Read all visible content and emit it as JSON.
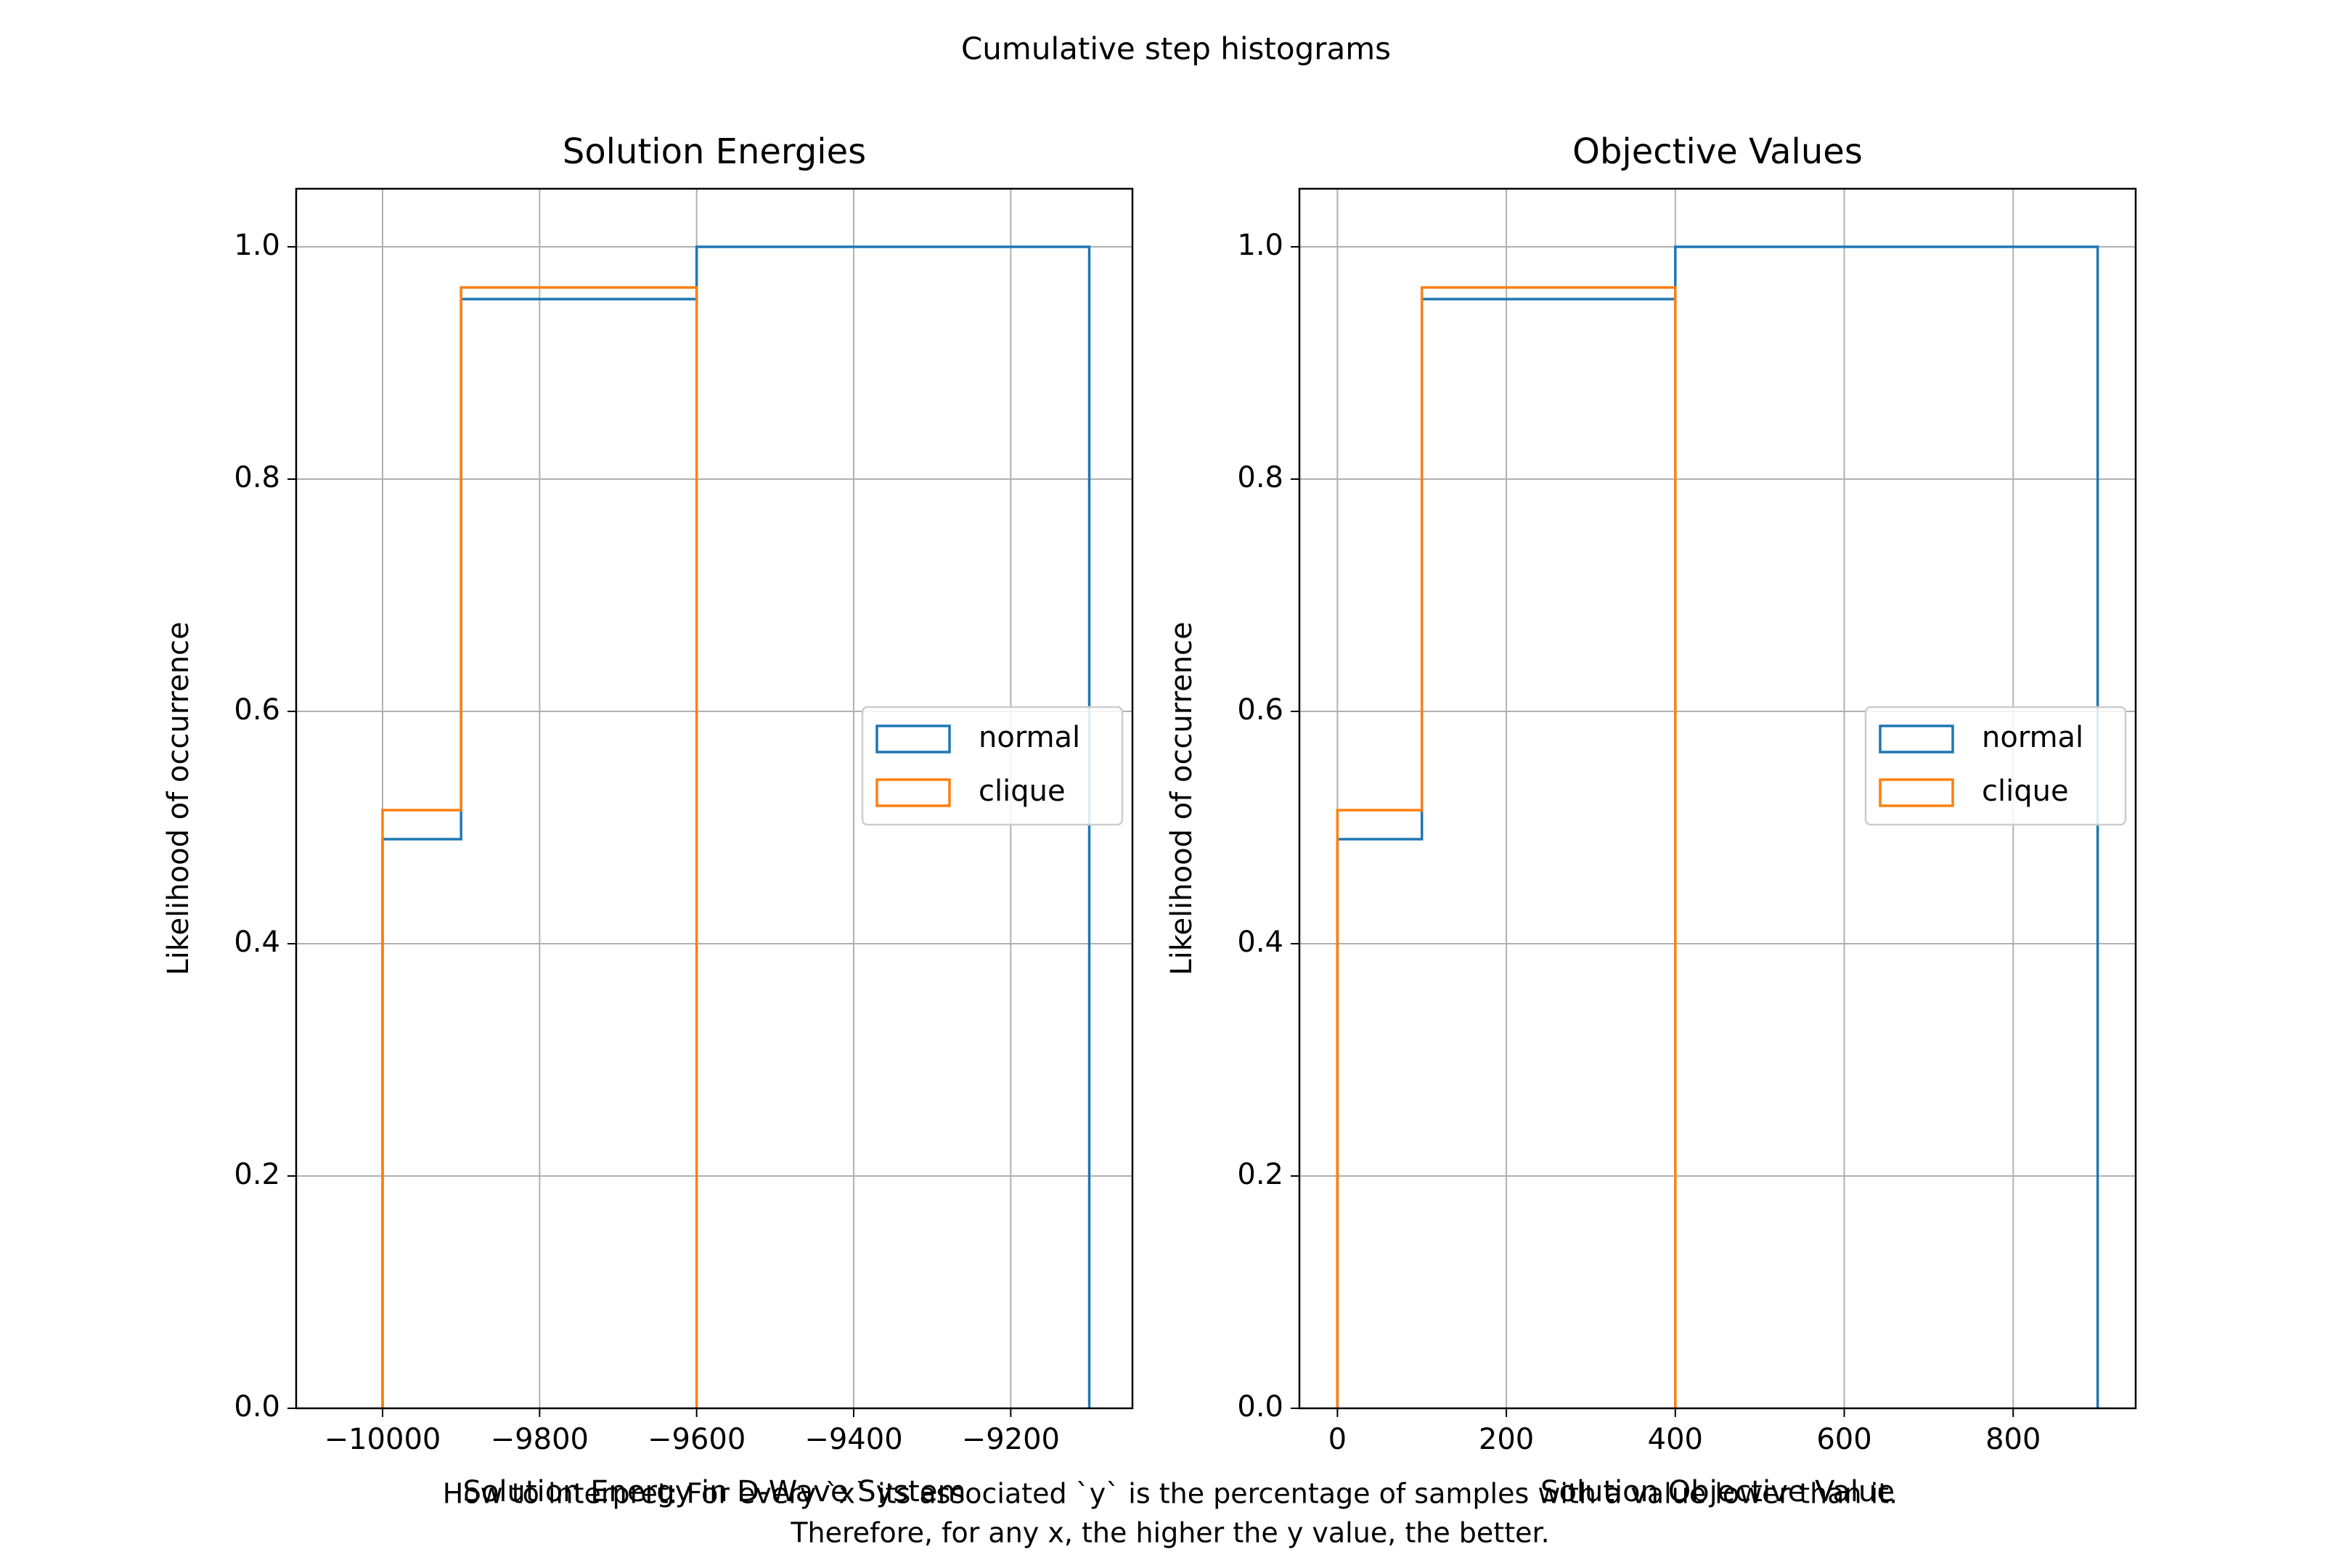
{
  "figure": {
    "suptitle": "Cumulative step histograms",
    "footnote_line1": "How to interpret: For every `x` its associated `y` is the percentage of samples with a value lower than it.",
    "footnote_line2": "Therefore, for any x, the higher the y value, the better."
  },
  "colors": {
    "normal": "#1f77b4",
    "clique": "#ff7f0e",
    "grid": "#b0b0b0"
  },
  "chart_data": [
    {
      "type": "line",
      "drawstyle": "cumulative-step-histogram",
      "title": "Solution Energies",
      "xlabel": "Solution Energy in D-Wave System",
      "ylabel": "Likelihood of occurrence",
      "xlim": [
        -10110,
        -9045
      ],
      "ylim": [
        0,
        1.05
      ],
      "xticks": [
        -10000,
        -9800,
        -9600,
        -9400,
        -9200
      ],
      "xtick_labels": [
        "−10000",
        "−9800",
        "−9600",
        "−9400",
        "−9200"
      ],
      "yticks": [
        0.0,
        0.2,
        0.4,
        0.6,
        0.8,
        1.0
      ],
      "ytick_labels": [
        "0.0",
        "0.2",
        "0.4",
        "0.6",
        "0.8",
        "1.0"
      ],
      "grid": true,
      "legend_position": "center-right",
      "series": [
        {
          "name": "normal",
          "edges": [
            -10000,
            -9900,
            -9600,
            -9100
          ],
          "values": [
            0.49,
            0.955,
            1.0
          ]
        },
        {
          "name": "clique",
          "edges": [
            -10000,
            -9900,
            -9600
          ],
          "values": [
            0.515,
            0.965
          ]
        }
      ]
    },
    {
      "type": "line",
      "drawstyle": "cumulative-step-histogram",
      "title": "Objective Values",
      "xlabel": "Solution Objective Value",
      "ylabel": "Likelihood of occurrence",
      "xlim": [
        -45,
        945
      ],
      "ylim": [
        0,
        1.05
      ],
      "xticks": [
        0,
        200,
        400,
        600,
        800
      ],
      "xtick_labels": [
        "0",
        "200",
        "400",
        "600",
        "800"
      ],
      "yticks": [
        0.0,
        0.2,
        0.4,
        0.6,
        0.8,
        1.0
      ],
      "ytick_labels": [
        "0.0",
        "0.2",
        "0.4",
        "0.6",
        "0.8",
        "1.0"
      ],
      "grid": true,
      "legend_position": "center-right",
      "series": [
        {
          "name": "normal",
          "edges": [
            0,
            100,
            400,
            900
          ],
          "values": [
            0.49,
            0.955,
            1.0
          ]
        },
        {
          "name": "clique",
          "edges": [
            0,
            100,
            400
          ],
          "values": [
            0.515,
            0.965
          ]
        }
      ]
    }
  ]
}
